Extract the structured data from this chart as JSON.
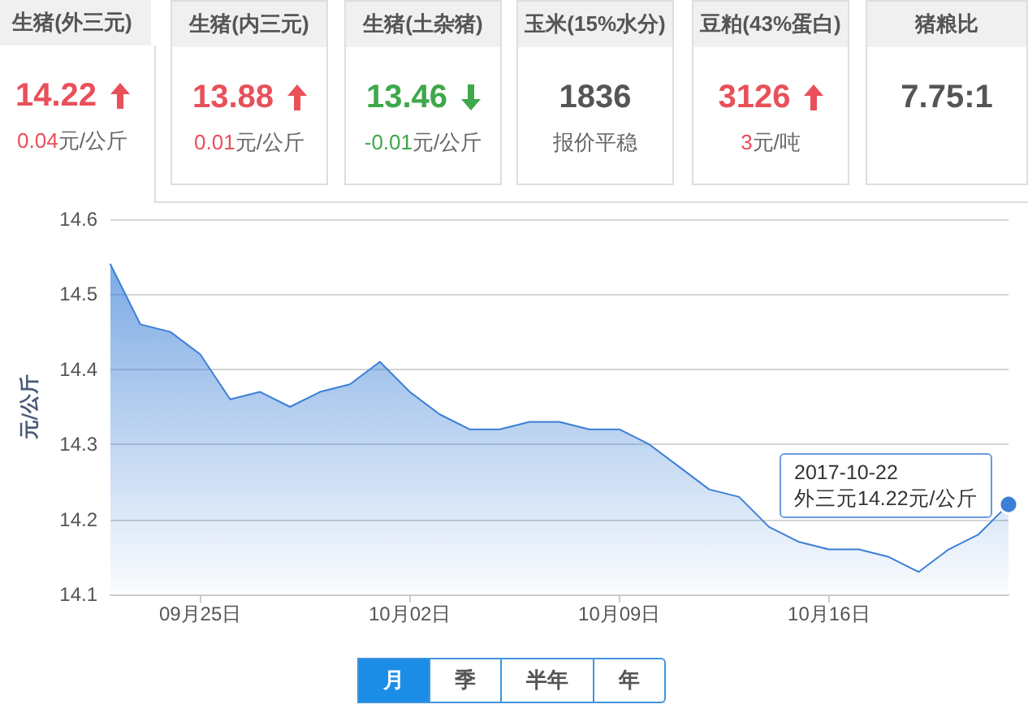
{
  "chart_data": [
    {
      "type": "other",
      "categories": [
        "生猪(外三元)",
        "生猪(内三元)",
        "生猪(土杂猪)",
        "玉米(15%水分)",
        "豆粕(43%蛋白)",
        "猪粮比"
      ],
      "series": [
        {
          "values": [
            14.22,
            13.88,
            13.46,
            1836,
            3126,
            7.75
          ],
          "value_labels": [
            "14.22",
            "13.88",
            "13.46",
            "1836",
            "3126",
            "7.75:1"
          ]
        },
        {
          "values": [
            0.04,
            0.01,
            -0.01,
            null,
            3,
            null
          ],
          "value_labels": [
            "0.04",
            "0.01",
            "-0.01",
            null,
            "3",
            null
          ]
        }
      ],
      "annotations": [
        "元/公斤",
        "元/公斤",
        "元/公斤",
        "报价平稳",
        "元/吨"
      ]
    },
    {
      "type": "area",
      "x": [
        "2017-09-22",
        "2017-09-23",
        "2017-09-24",
        "2017-09-25",
        "2017-09-26",
        "2017-09-27",
        "2017-09-28",
        "2017-09-29",
        "2017-09-30",
        "2017-10-01",
        "2017-10-02",
        "2017-10-03",
        "2017-10-04",
        "2017-10-05",
        "2017-10-06",
        "2017-10-07",
        "2017-10-08",
        "2017-10-09",
        "2017-10-10",
        "2017-10-11",
        "2017-10-12",
        "2017-10-13",
        "2017-10-14",
        "2017-10-15",
        "2017-10-16",
        "2017-10-17",
        "2017-10-18",
        "2017-10-19",
        "2017-10-20",
        "2017-10-21",
        "2017-10-22"
      ],
      "values": [
        14.54,
        14.46,
        14.45,
        14.42,
        14.36,
        14.37,
        14.35,
        14.37,
        14.38,
        14.41,
        14.37,
        14.34,
        14.32,
        14.32,
        14.33,
        14.33,
        14.32,
        14.32,
        14.3,
        14.27,
        14.24,
        14.23,
        14.19,
        14.17,
        14.16,
        14.16,
        14.15,
        14.13,
        14.16,
        14.18,
        14.22
      ],
      "color": "#3b7fd6",
      "ylabel": "元/公斤",
      "xlim": [
        "2017-09-22",
        "2017-10-22"
      ],
      "ylim": [
        14.1,
        14.6
      ],
      "yticks": [
        14.1,
        14.2,
        14.3,
        14.4,
        14.5,
        14.6
      ],
      "xticks": [
        {
          "value": "2017-09-25",
          "label": "09月25日"
        },
        {
          "value": "2017-10-02",
          "label": "10月02日"
        },
        {
          "value": "2017-10-09",
          "label": "10月09日"
        },
        {
          "value": "2017-10-16",
          "label": "10月16日"
        }
      ],
      "grid": "y",
      "marker": "none",
      "annotations": [
        {
          "text": "2017-10-22\n外三元14.22元/公斤",
          "x": "2017-10-22",
          "y": 14.22
        },
        "月",
        "季",
        "半年",
        "年"
      ]
    }
  ]
}
